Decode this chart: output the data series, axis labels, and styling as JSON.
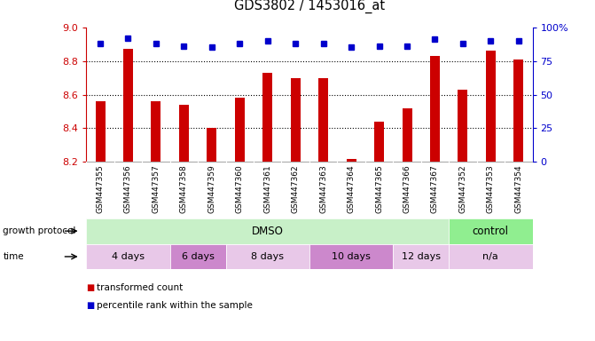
{
  "title": "GDS3802 / 1453016_at",
  "samples": [
    "GSM447355",
    "GSM447356",
    "GSM447357",
    "GSM447358",
    "GSM447359",
    "GSM447360",
    "GSM447361",
    "GSM447362",
    "GSM447363",
    "GSM447364",
    "GSM447365",
    "GSM447366",
    "GSM447367",
    "GSM447352",
    "GSM447353",
    "GSM447354"
  ],
  "red_values": [
    8.56,
    8.87,
    8.56,
    8.54,
    8.4,
    8.58,
    8.73,
    8.7,
    8.7,
    8.22,
    8.44,
    8.52,
    8.83,
    8.63,
    8.86,
    8.81
  ],
  "blue_values": [
    88,
    92,
    88,
    86,
    85,
    88,
    90,
    88,
    88,
    85,
    86,
    86,
    91,
    88,
    90,
    90
  ],
  "ylim_left": [
    8.2,
    9.0
  ],
  "ylim_right": [
    0,
    100
  ],
  "yticks_left": [
    8.2,
    8.4,
    8.6,
    8.8,
    9.0
  ],
  "yticks_right": [
    0,
    25,
    50,
    75,
    100
  ],
  "ytick_labels_right": [
    "0",
    "25",
    "50",
    "75",
    "100%"
  ],
  "hlines": [
    8.4,
    8.6,
    8.8
  ],
  "growth_protocol_groups": [
    {
      "label": "DMSO",
      "start": 0,
      "end": 13,
      "color": "#c8f0c8"
    },
    {
      "label": "control",
      "start": 13,
      "end": 16,
      "color": "#90ee90"
    }
  ],
  "time_groups": [
    {
      "label": "4 days",
      "start": 0,
      "end": 3,
      "color": "#e8c8e8"
    },
    {
      "label": "6 days",
      "start": 3,
      "end": 5,
      "color": "#cc88cc"
    },
    {
      "label": "8 days",
      "start": 5,
      "end": 8,
      "color": "#e8c8e8"
    },
    {
      "label": "10 days",
      "start": 8,
      "end": 11,
      "color": "#cc88cc"
    },
    {
      "label": "12 days",
      "start": 11,
      "end": 13,
      "color": "#e8c8e8"
    },
    {
      "label": "n/a",
      "start": 13,
      "end": 16,
      "color": "#e8c8e8"
    }
  ],
  "bar_color": "#cc0000",
  "dot_color": "#0000cc",
  "bar_width": 0.35,
  "ybase": 8.2,
  "background_color": "#ffffff",
  "tick_color_left": "#cc0000",
  "tick_color_right": "#0000cc",
  "sample_band_color": "#d8d8d8",
  "legend_items": [
    {
      "label": "transformed count",
      "color": "#cc0000",
      "marker": "s"
    },
    {
      "label": "percentile rank within the sample",
      "color": "#0000cc",
      "marker": "s"
    }
  ]
}
